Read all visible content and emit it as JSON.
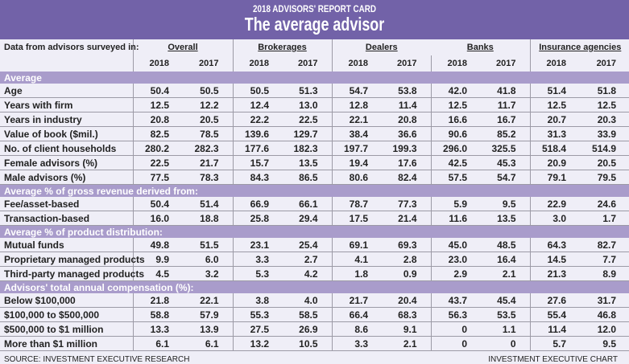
{
  "header": {
    "kicker": "2018 ADVISORS' REPORT CARD",
    "title": "The average advisor"
  },
  "table": {
    "row_label_header": "Data from advisors surveyed in:",
    "groups": [
      "Overall",
      "Brokerages",
      "Dealers",
      "Banks",
      "Insurance agencies"
    ],
    "years": [
      "2018",
      "2017"
    ],
    "sections": [
      {
        "title": "Average",
        "rows": [
          {
            "label": "Age",
            "values": [
              "50.4",
              "50.5",
              "50.5",
              "51.3",
              "54.7",
              "53.8",
              "42.0",
              "41.8",
              "51.4",
              "51.8"
            ]
          },
          {
            "label": "Years with firm",
            "values": [
              "12.5",
              "12.2",
              "12.4",
              "13.0",
              "12.8",
              "11.4",
              "12.5",
              "11.7",
              "12.5",
              "12.5"
            ]
          },
          {
            "label": "Years in industry",
            "values": [
              "20.8",
              "20.5",
              "22.2",
              "22.5",
              "22.1",
              "20.8",
              "16.6",
              "16.7",
              "20.7",
              "20.3"
            ]
          },
          {
            "label": "Value of book ($mil.)",
            "values": [
              "82.5",
              "78.5",
              "139.6",
              "129.7",
              "38.4",
              "36.6",
              "90.6",
              "85.2",
              "31.3",
              "33.9"
            ]
          },
          {
            "label": "No. of client households",
            "values": [
              "280.2",
              "282.3",
              "177.6",
              "182.3",
              "197.7",
              "199.3",
              "296.0",
              "325.5",
              "518.4",
              "514.9"
            ]
          },
          {
            "label": "Female advisors (%)",
            "values": [
              "22.5",
              "21.7",
              "15.7",
              "13.5",
              "19.4",
              "17.6",
              "42.5",
              "45.3",
              "20.9",
              "20.5"
            ]
          },
          {
            "label": "Male advisors (%)",
            "values": [
              "77.5",
              "78.3",
              "84.3",
              "86.5",
              "80.6",
              "82.4",
              "57.5",
              "54.7",
              "79.1",
              "79.5"
            ]
          }
        ]
      },
      {
        "title": "Average % of gross revenue derived from:",
        "rows": [
          {
            "label": "Fee/asset-based",
            "values": [
              "50.4",
              "51.4",
              "66.9",
              "66.1",
              "78.7",
              "77.3",
              "5.9",
              "9.5",
              "22.9",
              "24.6"
            ]
          },
          {
            "label": "Transaction-based",
            "values": [
              "16.0",
              "18.8",
              "25.8",
              "29.4",
              "17.5",
              "21.4",
              "11.6",
              "13.5",
              "3.0",
              "1.7"
            ]
          }
        ]
      },
      {
        "title": "Average % of product distribution:",
        "rows": [
          {
            "label": "Mutual funds",
            "values": [
              "49.8",
              "51.5",
              "23.1",
              "25.4",
              "69.1",
              "69.3",
              "45.0",
              "48.5",
              "64.3",
              "82.7"
            ]
          },
          {
            "label": "Proprietary managed products",
            "values": [
              "9.9",
              "6.0",
              "3.3",
              "2.7",
              "4.1",
              "2.8",
              "23.0",
              "16.4",
              "14.5",
              "7.7"
            ]
          },
          {
            "label": "Third-party managed products",
            "values": [
              "4.5",
              "3.2",
              "5.3",
              "4.2",
              "1.8",
              "0.9",
              "2.9",
              "2.1",
              "21.3",
              "8.9"
            ]
          }
        ]
      },
      {
        "title": "Advisors' total annual compensation (%):",
        "rows": [
          {
            "label": "Below $100,000",
            "values": [
              "21.8",
              "22.1",
              "3.8",
              "4.0",
              "21.7",
              "20.4",
              "43.7",
              "45.4",
              "27.6",
              "31.7"
            ]
          },
          {
            "label": "$100,000 to $500,000",
            "values": [
              "58.8",
              "57.9",
              "55.3",
              "58.5",
              "66.4",
              "68.3",
              "56.3",
              "53.5",
              "55.4",
              "46.8"
            ]
          },
          {
            "label": "$500,000 to $1 million",
            "values": [
              "13.3",
              "13.9",
              "27.5",
              "26.9",
              "8.6",
              "9.1",
              "0",
              "1.1",
              "11.4",
              "12.0"
            ]
          },
          {
            "label": "More than $1 million",
            "values": [
              "6.1",
              "6.1",
              "13.2",
              "10.5",
              "3.3",
              "2.1",
              "0",
              "0",
              "5.7",
              "9.5"
            ]
          }
        ]
      }
    ]
  },
  "footer": {
    "source": "SOURCE: INVESTMENT EXECUTIVE RESEARCH",
    "credit": "INVESTMENT EXECUTIVE CHART"
  },
  "colors": {
    "header": "#7262a8",
    "section_bar": "#a99ccb",
    "background": "#efeef7"
  }
}
